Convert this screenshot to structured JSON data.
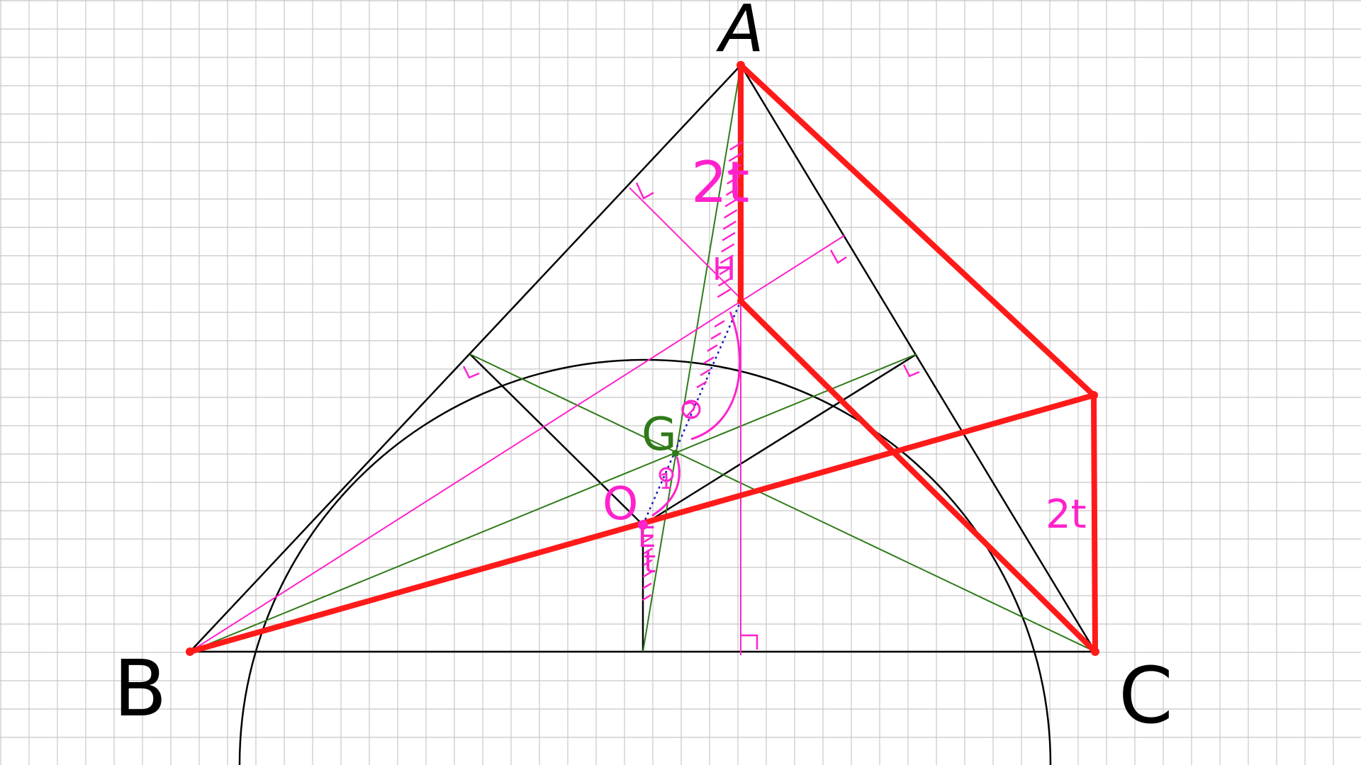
{
  "diagram": {
    "type": "geometry-construction",
    "colors": {
      "grid": "#c8c8c8",
      "black": "#000000",
      "red": "#ff1a1a",
      "green": "#2f7a18",
      "pink": "#ff22cc",
      "blue": "#1a1ab8"
    },
    "labels": {
      "vertex_a": "A",
      "vertex_b": "B",
      "vertex_c": "C",
      "centroid": "G",
      "circumcenter": "O",
      "orthocenter": "H",
      "ratio_ah": "2t",
      "ratio_right": "2t",
      "ratio_oe": "t",
      "ratio_go": "1",
      "ratio_hg": "2",
      "point_e": "E"
    }
  }
}
